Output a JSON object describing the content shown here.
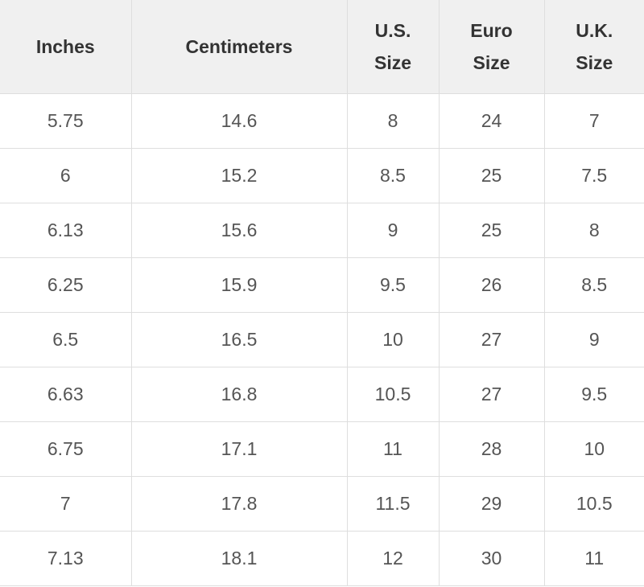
{
  "table": {
    "header": [
      "Inches",
      "Centimeters",
      "U.S.\nSize",
      "Euro\nSize",
      "U.K.\nSize"
    ],
    "rows": [
      [
        "5.75",
        "14.6",
        "8",
        "24",
        "7"
      ],
      [
        "6",
        "15.2",
        "8.5",
        "25",
        "7.5"
      ],
      [
        "6.13",
        "15.6",
        "9",
        "25",
        "8"
      ],
      [
        "6.25",
        "15.9",
        "9.5",
        "26",
        "8.5"
      ],
      [
        "6.5",
        "16.5",
        "10",
        "27",
        "9"
      ],
      [
        "6.63",
        "16.8",
        "10.5",
        "27",
        "9.5"
      ],
      [
        "6.75",
        "17.1",
        "11",
        "28",
        "10"
      ],
      [
        "7",
        "17.8",
        "11.5",
        "29",
        "10.5"
      ],
      [
        "7.13",
        "18.1",
        "12",
        "30",
        "11"
      ]
    ]
  }
}
